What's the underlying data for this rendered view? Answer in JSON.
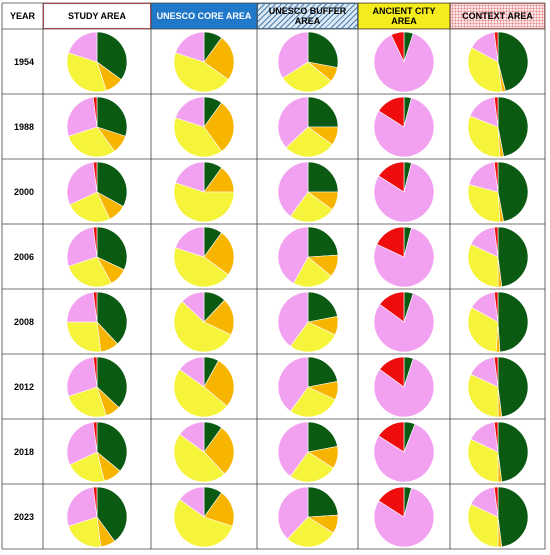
{
  "header": {
    "year": "YEAR",
    "columns": [
      {
        "key": "study",
        "label": "STUDY AREA",
        "bg": "#ffffff",
        "fg": "#000000",
        "border": "#e05050",
        "pattern": "none"
      },
      {
        "key": "core",
        "label": "UNESCO CORE AREA",
        "bg": "#1f78c8",
        "fg": "#ffffff",
        "border": "#1f78c8",
        "pattern": "none"
      },
      {
        "key": "buffer",
        "label": "UNESCO BUFFER AREA",
        "bg": "#dbe8f3",
        "fg": "#000000",
        "border": "#4a7fb0",
        "pattern": "hatch"
      },
      {
        "key": "ancient",
        "label": "ANCIENT CITY AREA",
        "bg": "#f4ec1c",
        "fg": "#000000",
        "border": "#d6c900",
        "pattern": "none"
      },
      {
        "key": "context",
        "label": "CONTEXT AREA",
        "bg": "#fbe6e6",
        "fg": "#000000",
        "border": "#e58a8a",
        "pattern": "dots"
      }
    ]
  },
  "colors": {
    "darkgreen": "#0b5a12",
    "orange": "#f7b500",
    "yellow": "#f5f33a",
    "pink": "#f2a0f0",
    "lightpink": "#f7c6f4",
    "red": "#ee0c0c",
    "lavender": "#c9b7f0",
    "brown": "#6b3a12"
  },
  "chart_data": {
    "type": "pie",
    "title": "",
    "years": [
      "1954",
      "1988",
      "2000",
      "2006",
      "2008",
      "2012",
      "2018",
      "2023"
    ],
    "areas": [
      "STUDY AREA",
      "UNESCO CORE AREA",
      "UNESCO BUFFER AREA",
      "ANCIENT CITY AREA",
      "CONTEXT AREA"
    ],
    "slice_order": [
      "darkgreen",
      "orange",
      "yellow",
      "pink",
      "red"
    ],
    "values": {
      "STUDY AREA": [
        [
          35,
          10,
          35,
          20,
          0
        ],
        [
          30,
          10,
          30,
          28,
          2
        ],
        [
          33,
          10,
          25,
          30,
          2
        ],
        [
          32,
          10,
          28,
          28,
          2
        ],
        [
          38,
          10,
          27,
          23,
          2
        ],
        [
          37,
          8,
          25,
          28,
          2
        ],
        [
          36,
          10,
          22,
          30,
          2
        ],
        [
          40,
          8,
          22,
          28,
          2
        ]
      ],
      "UNESCO CORE AREA": [
        [
          10,
          25,
          45,
          20,
          0
        ],
        [
          10,
          30,
          40,
          20,
          0
        ],
        [
          10,
          15,
          55,
          20,
          0
        ],
        [
          10,
          25,
          45,
          20,
          0
        ],
        [
          12,
          20,
          55,
          13,
          0
        ],
        [
          8,
          28,
          49,
          15,
          0
        ],
        [
          10,
          28,
          47,
          15,
          0
        ],
        [
          10,
          20,
          55,
          15,
          0
        ]
      ],
      "UNESCO BUFFER AREA": [
        [
          28,
          8,
          30,
          34,
          0
        ],
        [
          25,
          10,
          28,
          37,
          0
        ],
        [
          25,
          10,
          25,
          40,
          0
        ],
        [
          24,
          12,
          22,
          42,
          0
        ],
        [
          22,
          10,
          28,
          40,
          0
        ],
        [
          22,
          10,
          28,
          40,
          0
        ],
        [
          22,
          12,
          26,
          40,
          0
        ],
        [
          24,
          10,
          28,
          38,
          0
        ]
      ],
      "ANCIENT CITY AREA": [
        [
          5,
          0,
          0,
          88,
          7
        ],
        [
          4,
          0,
          0,
          80,
          16
        ],
        [
          4,
          0,
          0,
          80,
          16
        ],
        [
          4,
          0,
          0,
          78,
          18
        ],
        [
          5,
          0,
          0,
          80,
          15
        ],
        [
          5,
          0,
          0,
          80,
          15
        ],
        [
          6,
          0,
          0,
          78,
          16
        ],
        [
          4,
          0,
          0,
          80,
          16
        ]
      ],
      "CONTEXT AREA": [
        [
          46,
          2,
          35,
          15,
          2
        ],
        [
          47,
          2,
          32,
          17,
          2
        ],
        [
          47,
          2,
          30,
          19,
          2
        ],
        [
          48,
          2,
          32,
          16,
          2
        ],
        [
          49,
          2,
          32,
          15,
          2
        ],
        [
          48,
          2,
          32,
          16,
          2
        ],
        [
          48,
          2,
          32,
          16,
          2
        ],
        [
          48,
          2,
          32,
          16,
          2
        ]
      ]
    }
  }
}
